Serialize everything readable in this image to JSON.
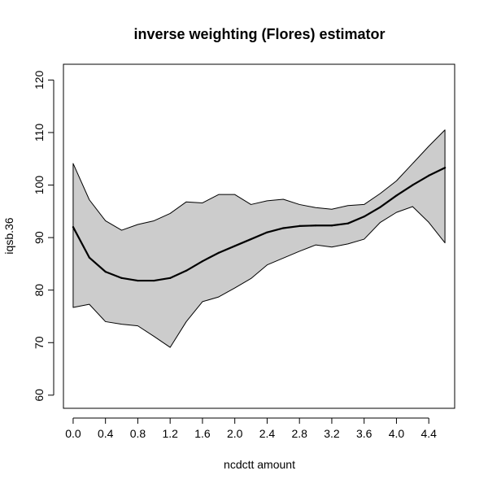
{
  "chart_data": {
    "type": "line",
    "title": "inverse weighting (Flores) estimator",
    "xlabel": "ncdctt amount",
    "ylabel": "iqsb.36",
    "xlim": [
      -0.12,
      4.72
    ],
    "ylim": [
      57.5,
      123
    ],
    "x_ticks": [
      0.0,
      0.4,
      0.8,
      1.2,
      1.6,
      2.0,
      2.4,
      2.8,
      3.2,
      3.6,
      4.0,
      4.4
    ],
    "x_tick_labels": [
      "0.0",
      "0.4",
      "0.8",
      "1.2",
      "1.6",
      "2.0",
      "2.4",
      "2.8",
      "3.2",
      "3.6",
      "4.0",
      "4.4"
    ],
    "y_ticks": [
      60,
      70,
      80,
      90,
      100,
      110,
      120
    ],
    "y_tick_labels": [
      "60",
      "70",
      "80",
      "90",
      "100",
      "110",
      "120"
    ],
    "grid": false,
    "x": [
      0.0,
      0.2,
      0.4,
      0.6,
      0.8,
      1.0,
      1.2,
      1.4,
      1.6,
      1.8,
      2.0,
      2.2,
      2.4,
      2.6,
      2.8,
      3.0,
      3.2,
      3.4,
      3.6,
      3.8,
      4.0,
      4.2,
      4.4,
      4.6
    ],
    "series": [
      {
        "values": [
          92.0,
          86.2,
          83.5,
          82.3,
          81.8,
          81.8,
          82.3,
          83.7,
          85.5,
          87.1,
          88.4,
          89.7,
          91.0,
          91.8,
          92.2,
          92.3,
          92.3,
          92.7,
          94.0,
          95.8,
          98.0,
          100.0,
          101.8,
          103.3
        ],
        "lower": [
          76.7,
          77.3,
          74.0,
          73.5,
          73.2,
          71.2,
          69.1,
          74.0,
          77.8,
          78.7,
          80.4,
          82.2,
          84.8,
          86.1,
          87.4,
          88.6,
          88.2,
          88.8,
          89.7,
          92.9,
          94.8,
          95.9,
          92.9,
          89.0
        ],
        "upper": [
          104.1,
          97.2,
          93.2,
          91.4,
          92.5,
          93.2,
          94.6,
          96.8,
          96.6,
          98.2,
          98.2,
          96.3,
          97.0,
          97.3,
          96.3,
          95.7,
          95.4,
          96.1,
          96.3,
          98.4,
          100.8,
          104.1,
          107.4,
          110.5
        ],
        "line_color": "#000000",
        "band_color": "#cccccc"
      }
    ]
  }
}
